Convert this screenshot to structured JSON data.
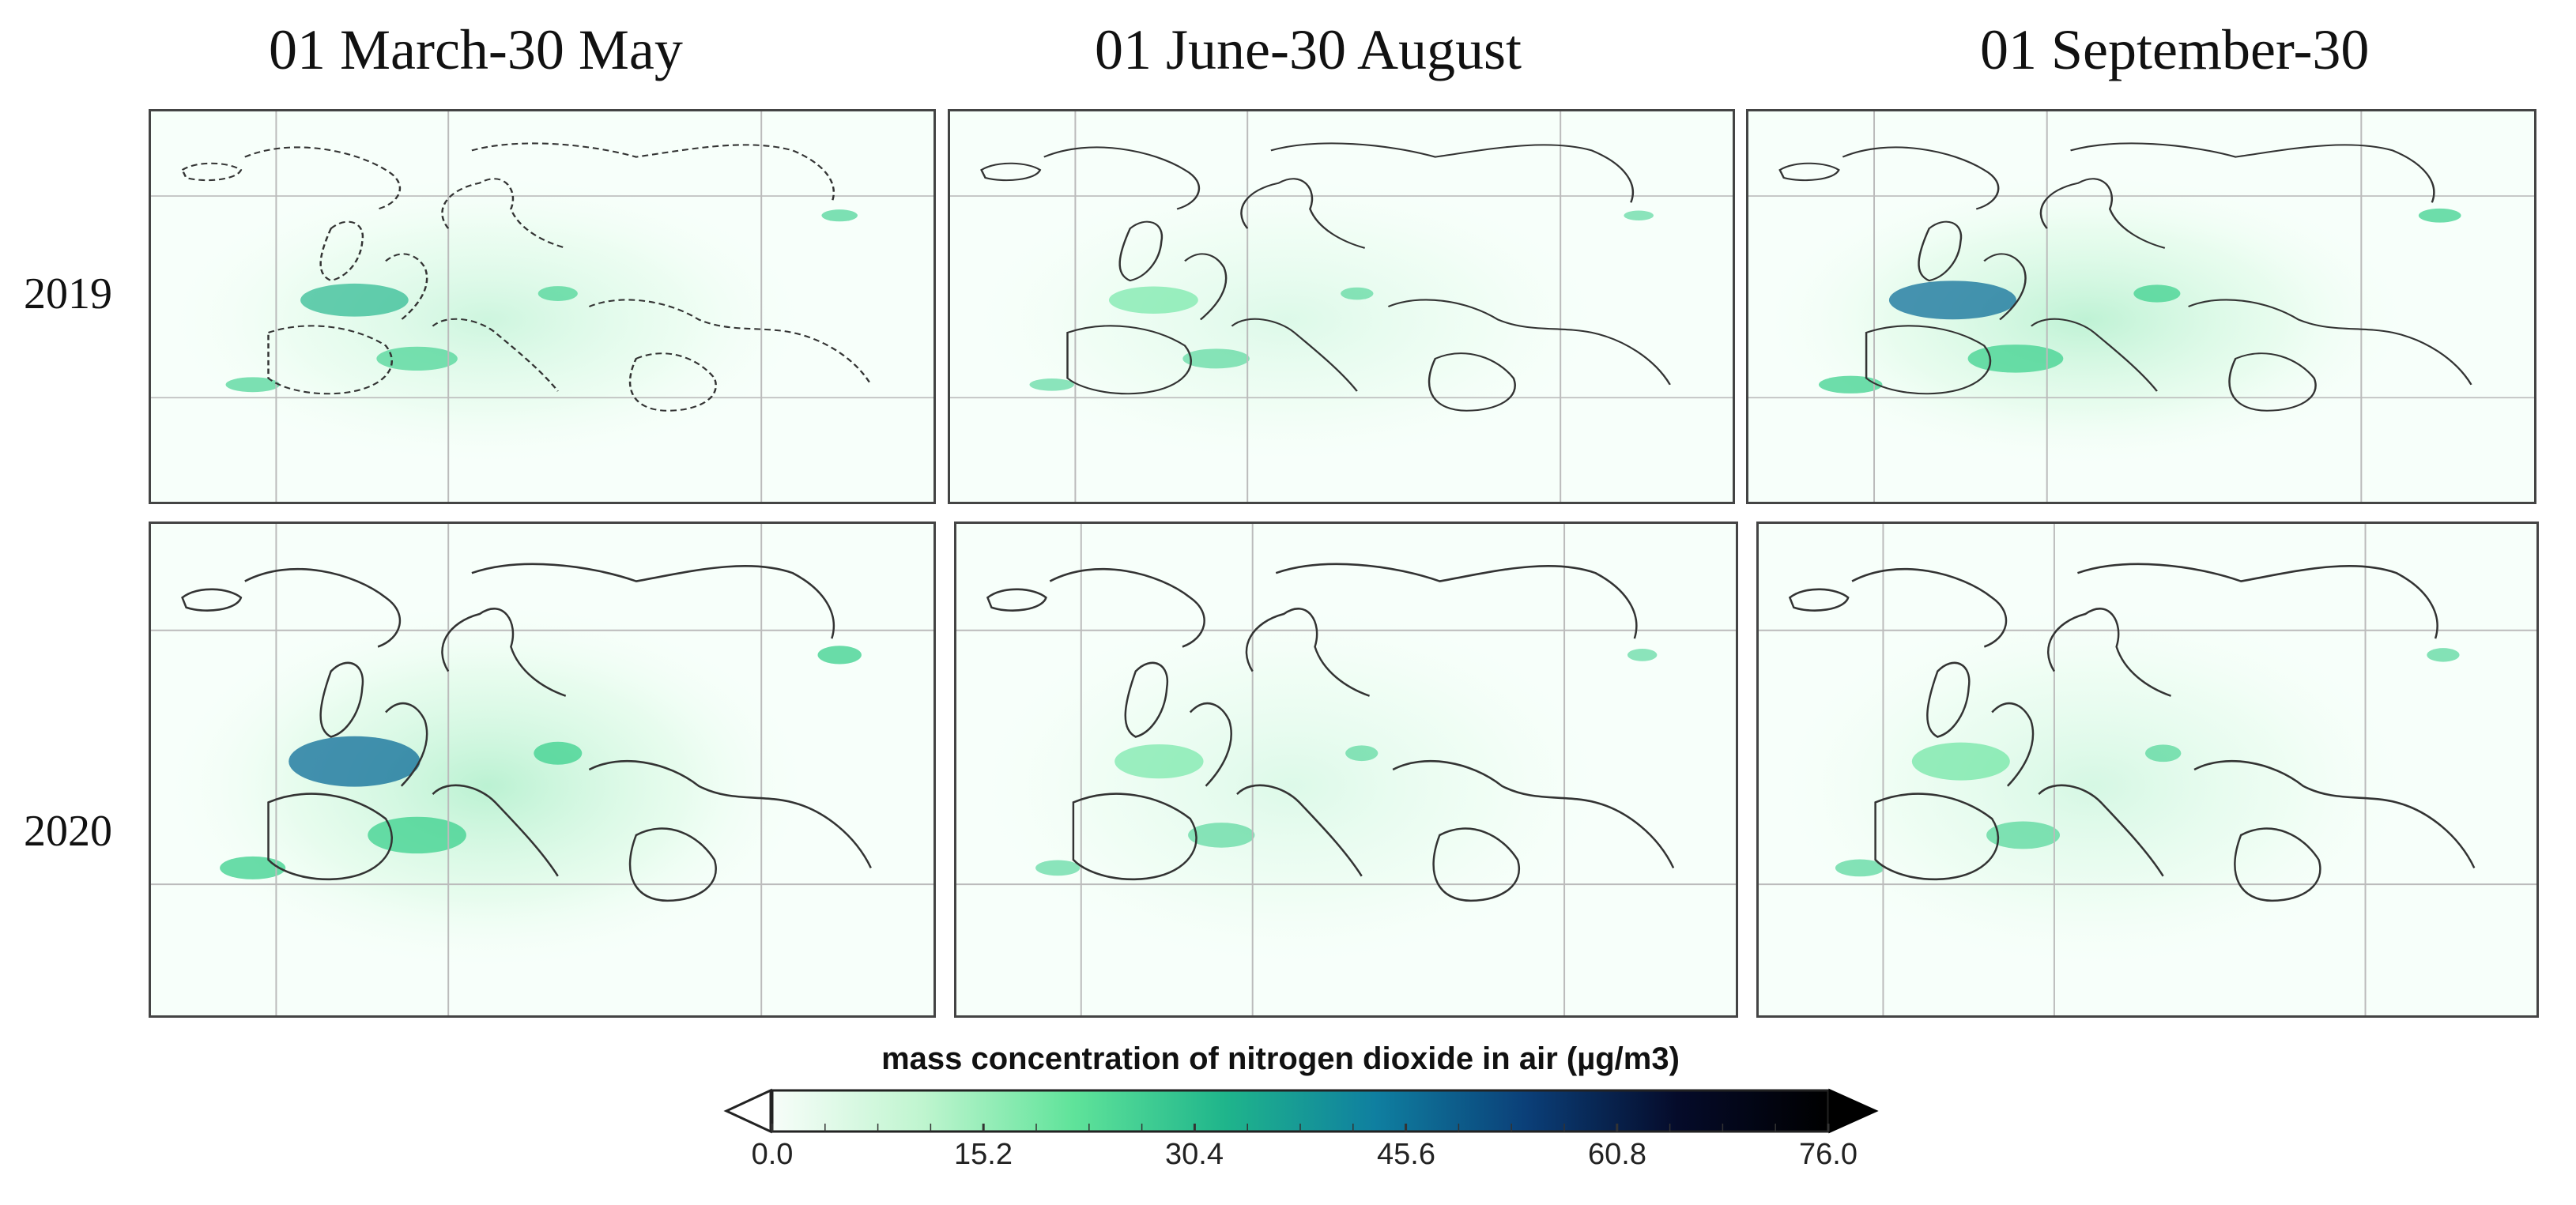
{
  "columns": [
    "01 March-30 May",
    "01 June-30 August",
    "01 September-30"
  ],
  "rows": [
    "2019",
    "2020"
  ],
  "colorbar": {
    "title": "mass concentration of nitrogen dioxide in air (µg/m3)",
    "ticks": [
      "0.0",
      "15.2",
      "30.4",
      "45.6",
      "60.8",
      "76.0"
    ],
    "min": 0.0,
    "max": 76.0,
    "colors": [
      "#f7fdf9",
      "#bff5cf",
      "#5fe39a",
      "#1fb58b",
      "#0f7fa0",
      "#0b3f78",
      "#050b2a",
      "#000000"
    ]
  },
  "panels": [
    {
      "id": "2019-spring",
      "level": 0.55
    },
    {
      "id": "2019-summer",
      "level": 0.35
    },
    {
      "id": "2019-autumn",
      "level": 0.75
    },
    {
      "id": "2020-spring",
      "level": 0.8
    },
    {
      "id": "2020-summer",
      "level": 0.35
    },
    {
      "id": "2020-autumn",
      "level": 0.45
    }
  ]
}
